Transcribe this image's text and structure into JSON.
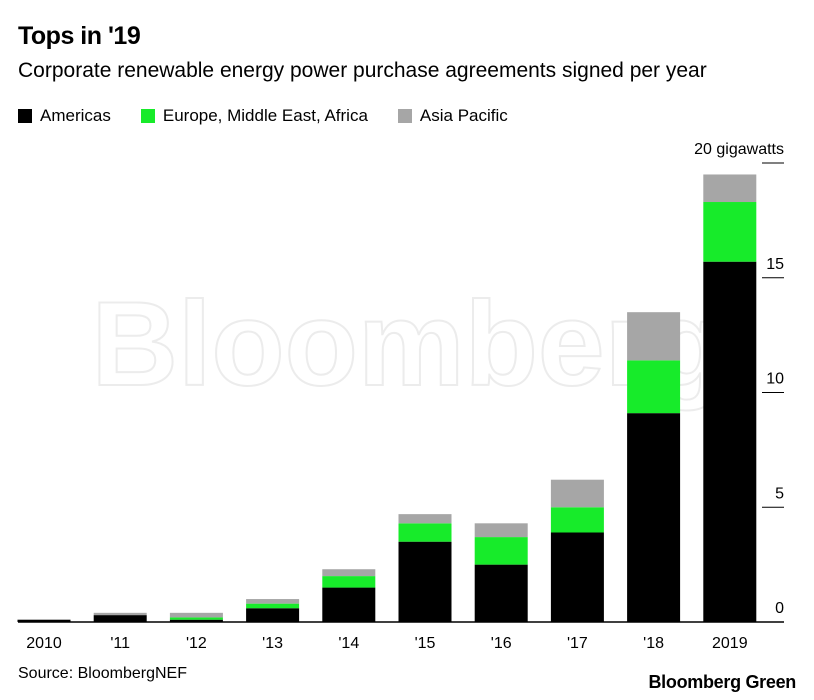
{
  "header": {
    "title": "Tops in '19",
    "subtitle": "Corporate renewable energy power purchase agreements signed per year"
  },
  "footer": {
    "source": "Source: BloombergNEF",
    "brand": "Bloomberg Green"
  },
  "watermark": "Bloomberg",
  "colors": {
    "americas": "#000000",
    "emea": "#17eb2a",
    "apac": "#a6a6a6"
  },
  "chart_data": {
    "type": "bar",
    "stacked": true,
    "title": "Tops in '19",
    "subtitle": "Corporate renewable energy power purchase agreements signed per year",
    "categories": [
      "2010",
      "'11",
      "'12",
      "'13",
      "'14",
      "'15",
      "'16",
      "'17",
      "'18",
      "2019"
    ],
    "series": [
      {
        "name": "Americas",
        "color": "#000000",
        "values": [
          0.1,
          0.3,
          0.1,
          0.6,
          1.5,
          3.5,
          2.5,
          3.9,
          9.1,
          15.7
        ]
      },
      {
        "name": "Europe, Middle East, Africa",
        "color": "#17eb2a",
        "values": [
          0.0,
          0.0,
          0.1,
          0.2,
          0.5,
          0.8,
          1.2,
          1.1,
          2.3,
          2.6
        ]
      },
      {
        "name": "Asia Pacific",
        "color": "#a6a6a6",
        "values": [
          0.0,
          0.1,
          0.2,
          0.2,
          0.3,
          0.4,
          0.6,
          1.2,
          2.1,
          1.2
        ]
      }
    ],
    "ylim": [
      0,
      20
    ],
    "yticks": [
      0,
      5,
      10,
      15,
      20
    ],
    "ytick_labels": [
      "0",
      "5",
      "10",
      "15",
      "20 gigawatts"
    ],
    "legend_position": "top-left",
    "y_axis_side": "right",
    "grid": false
  }
}
